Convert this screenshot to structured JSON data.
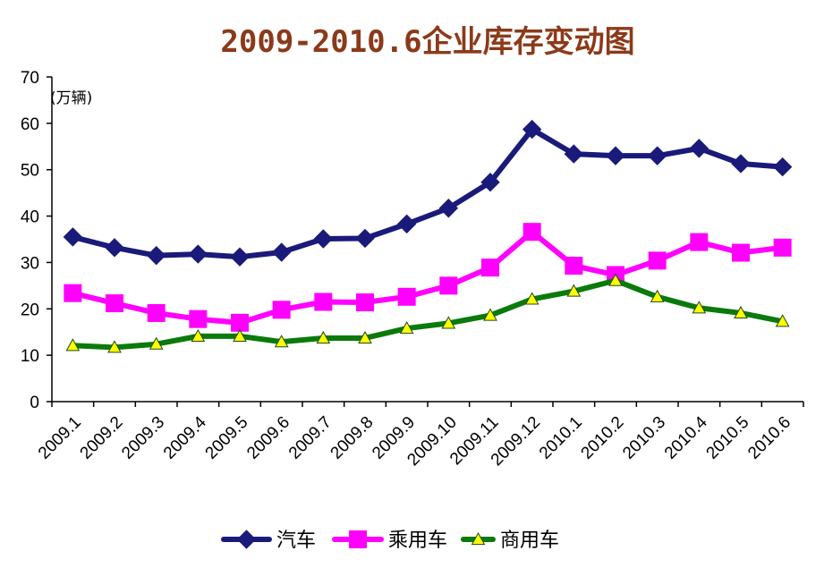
{
  "chart_data": {
    "type": "line",
    "title": "2009-2010.6企业库存变动图",
    "unit_label": "(万辆)",
    "ylim": [
      0,
      70
    ],
    "yticks": [
      0,
      10,
      20,
      30,
      40,
      50,
      60,
      70
    ],
    "categories": [
      "2009.1",
      "2009.2",
      "2009.3",
      "2009.4",
      "2009.5",
      "2009.6",
      "2009.7",
      "2009.8",
      "2009.9",
      "2009.10",
      "2009.11",
      "2009.12",
      "2010.1",
      "2010.2",
      "2010.3",
      "2010.4",
      "2010.5",
      "2010.6"
    ],
    "series": [
      {
        "name": "汽车",
        "color": "#1a1a7a",
        "marker": "diamond",
        "values": [
          35.5,
          33.2,
          31.5,
          31.8,
          31.2,
          32.2,
          35.1,
          35.2,
          38.3,
          41.7,
          47.3,
          58.7,
          53.4,
          53.0,
          53.0,
          54.6,
          51.3,
          50.6
        ]
      },
      {
        "name": "乘用车",
        "color": "#ff00ff",
        "marker": "square",
        "values": [
          23.4,
          21.2,
          19.1,
          17.8,
          17.0,
          19.8,
          21.5,
          21.4,
          22.6,
          25.0,
          28.9,
          36.6,
          29.3,
          27.3,
          30.4,
          34.4,
          32.1,
          33.2
        ]
      },
      {
        "name": "商用车",
        "color": "#0a7a0a",
        "marker": "triangle",
        "values": [
          12.1,
          11.7,
          12.4,
          14.1,
          14.1,
          12.9,
          13.7,
          13.7,
          15.8,
          16.9,
          18.6,
          22.1,
          23.8,
          26.1,
          22.6,
          20.2,
          19.1,
          17.3
        ]
      }
    ],
    "legend_position": "bottom-center",
    "grid": false
  }
}
